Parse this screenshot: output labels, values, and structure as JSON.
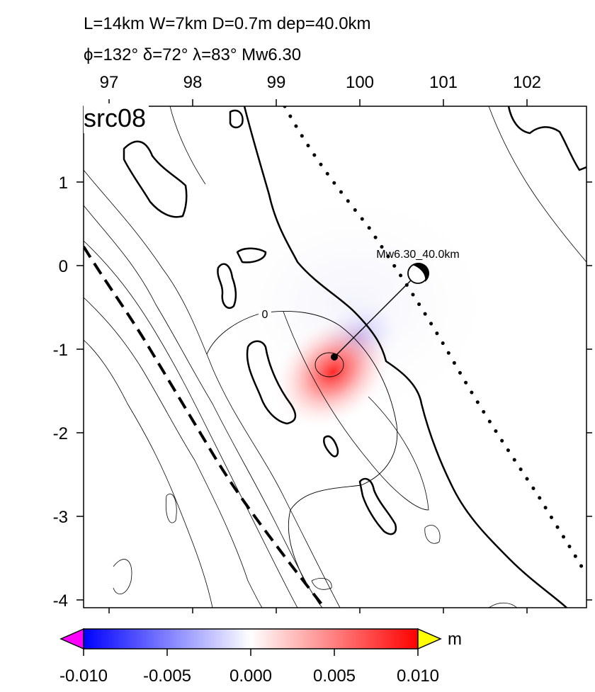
{
  "header": {
    "line1": "L=14km W=7km D=0.7m dep=40.0km",
    "line2": "ϕ=132° δ=72° λ=83° Mw6.30"
  },
  "map": {
    "source_label": "src08",
    "x_ticks": [
      "97",
      "98",
      "99",
      "100",
      "101",
      "102"
    ],
    "y_ticks": [
      "1",
      "0",
      "-1",
      "-2",
      "-3",
      "-4"
    ],
    "contour_label": "0",
    "event_label": "Mw6.30_40.0km",
    "epicenter": {
      "lon": 100.7,
      "lat": -0.1
    },
    "source_point": {
      "lon": 99.7,
      "lat": -1.1
    }
  },
  "colorbar": {
    "unit": "m",
    "ticks": [
      "-0.010",
      "-0.005",
      "0.000",
      "0.005",
      "0.010"
    ],
    "colors": {
      "low": "#0000ff",
      "mid": "#ffffff",
      "high": "#ff0000",
      "below": "#ff00ff",
      "above": "#ffff00"
    }
  }
}
